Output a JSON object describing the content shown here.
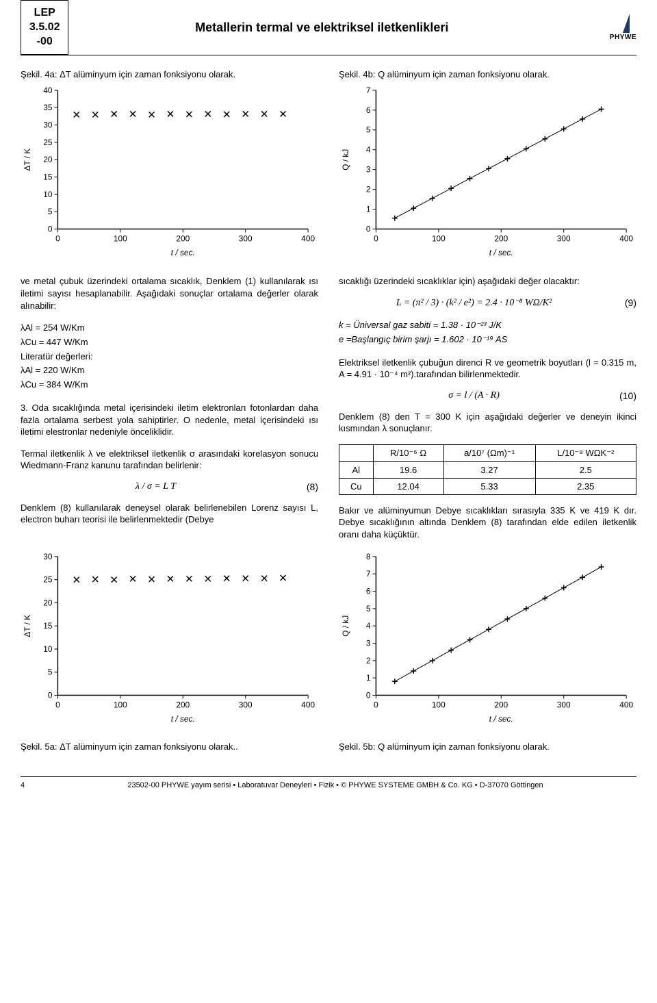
{
  "header": {
    "code_line1": "LEP",
    "code_line2": "3.5.02",
    "code_line3": "-00",
    "title": "Metallerin termal ve elektriksel iletkenlikleri",
    "logo_text": "PHYWE",
    "logo_color": "#1b3a6b"
  },
  "captions": {
    "fig4a": "Şekil. 4a: ΔT alüminyum için zaman fonksiyonu olarak.",
    "fig4b": "Şekil. 4b: Q alüminyum için zaman fonksiyonu olarak.",
    "fig5a": "Şekil. 5a: ΔT alüminyum için zaman fonksiyonu olarak..",
    "fig5b": "Şekil. 5b: Q alüminyum için zaman fonksiyonu olarak."
  },
  "left_col": {
    "para1": "ve metal çubuk üzerindeki ortalama sıcaklık, Denklem (1) kullanılarak ısı iletimi sayısı hesaplanabilir. Aşağıdaki sonuçlar ortalama değerler olarak alınabilir:",
    "values": {
      "l1": "λAl  = 254 W/Km",
      "l2": "λCu = 447 W/Km",
      "lit_label": "Literatür değerleri:",
      "l3": "λAl  = 220 W/Km",
      "l4": "λCu = 384 W/Km"
    },
    "para2": "3. Oda sıcaklığında metal içerisindeki iletim elektronları fotonlardan daha fazla ortalama serbest yola sahiptirler. O nedenle, metal içerisindeki ısı iletimi elestronlar nedeniyle önceliklidir.",
    "para3": "Termal iletkenlik λ ve elektriksel iletkenlik σ arasındaki korelasyon sonucu Wiedmann-Franz kanunu tarafından belirlenir:",
    "eq8": "λ / σ = L T",
    "eq8_num": "(8)",
    "para4": "Denklem (8) kullanılarak deneysel olarak belirlenebilen Lorenz sayısı L, electron buharı teorisi ile belirlenmektedir (Debye"
  },
  "right_col": {
    "para1": "sıcaklığı üzerindeki sıcaklıklar için) aşağıdaki değer olacaktır:",
    "eq9": "L = (π² / 3) · (k² / e²) = 2.4 · 10⁻⁸  WΩ/K²",
    "eq9_num": "(9)",
    "const_k": "k = Üniversal gaz sabiti = 1.38 · 10⁻²³ J/K",
    "const_e": "e =Başlangıç birim şarjı = 1.602 · 10⁻¹⁹ AS",
    "para2": "Elektriksel iletkenlik çubuğun direnci R ve geometrik boyutları (l = 0.315 m, A = 4.91 · 10⁻⁴ m²).tarafından bilirlenmektedir.",
    "eq10": "σ = l / (A · R)",
    "eq10_num": "(10)",
    "para3": "Denklem (8) den T = 300 K için aşağıdaki değerler ve deneyin ikinci kısmından λ sonuçlanır.",
    "table": {
      "headers": [
        "",
        "R/10⁻⁶ Ω",
        "a/10⁷ (Ωm)⁻¹",
        "L/10⁻⁸ WΩK⁻²"
      ],
      "rows": [
        [
          "Al",
          "19.6",
          "3.27",
          "2.5"
        ],
        [
          "Cu",
          "12.04",
          "5.33",
          "2.35"
        ]
      ]
    },
    "para4": "Bakır ve alüminyumun Debye sıcaklıkları sırasıyla 335 K ve 419 K dır. Debye sıcaklığının altında Denklem (8) tarafından elde edilen iletkenlik oranı daha küçüktür."
  },
  "chart4a": {
    "type": "scatter",
    "xlabel": "t / sec.",
    "ylabel": "ΔT / K",
    "xlim": [
      0,
      400
    ],
    "xtick_step": 100,
    "ylim": [
      0,
      40
    ],
    "ytick_step": 5,
    "marker": "x",
    "marker_color": "#000000",
    "background_color": "#ffffff",
    "axis_color": "#000000",
    "data_x": [
      30,
      60,
      90,
      120,
      150,
      180,
      210,
      240,
      270,
      300,
      330,
      360
    ],
    "data_y": [
      33,
      33,
      33.2,
      33.2,
      33,
      33.2,
      33.1,
      33.2,
      33.1,
      33.2,
      33.2,
      33.2
    ],
    "label_fontsize": 12
  },
  "chart4b": {
    "type": "scatter-line",
    "xlabel": "t / sec.",
    "ylabel": "Q / kJ",
    "xlim": [
      0,
      400
    ],
    "xtick_step": 100,
    "ylim": [
      0,
      7
    ],
    "ytick_step": 1,
    "marker": "+",
    "marker_color": "#000000",
    "line_color": "#000000",
    "background_color": "#ffffff",
    "axis_color": "#000000",
    "data_x": [
      30,
      60,
      90,
      120,
      150,
      180,
      210,
      240,
      270,
      300,
      330,
      360
    ],
    "data_y": [
      0.55,
      1.05,
      1.55,
      2.05,
      2.55,
      3.05,
      3.55,
      4.05,
      4.55,
      5.05,
      5.55,
      6.05
    ],
    "label_fontsize": 12
  },
  "chart5a": {
    "type": "scatter",
    "xlabel": "t / sec.",
    "ylabel": "ΔT / K",
    "xlim": [
      0,
      400
    ],
    "xtick_step": 100,
    "ylim": [
      0,
      30
    ],
    "ytick_step": 5,
    "marker": "x",
    "marker_color": "#000000",
    "background_color": "#ffffff",
    "axis_color": "#000000",
    "data_x": [
      30,
      60,
      90,
      120,
      150,
      180,
      210,
      240,
      270,
      300,
      330,
      360
    ],
    "data_y": [
      25,
      25.1,
      25,
      25.2,
      25.1,
      25.2,
      25.2,
      25.2,
      25.3,
      25.3,
      25.3,
      25.4
    ],
    "label_fontsize": 12
  },
  "chart5b": {
    "type": "scatter-line",
    "xlabel": "t / sec.",
    "ylabel": "Q / kJ",
    "xlim": [
      0,
      400
    ],
    "xtick_step": 100,
    "ylim": [
      0,
      8
    ],
    "ytick_step": 1,
    "marker": "+",
    "marker_color": "#000000",
    "line_color": "#000000",
    "background_color": "#ffffff",
    "axis_color": "#000000",
    "data_x": [
      30,
      60,
      90,
      120,
      150,
      180,
      210,
      240,
      270,
      300,
      330,
      360
    ],
    "data_y": [
      0.8,
      1.4,
      2.0,
      2.6,
      3.2,
      3.8,
      4.4,
      5.0,
      5.6,
      6.2,
      6.8,
      7.4
    ],
    "label_fontsize": 12
  },
  "footer": {
    "page": "4",
    "center": "23502-00      PHYWE yayım serisi • Laboratuvar Deneyleri • Fizik • © PHYWE SYSTEME GMBH & Co. KG • D-37070 Göttingen"
  }
}
